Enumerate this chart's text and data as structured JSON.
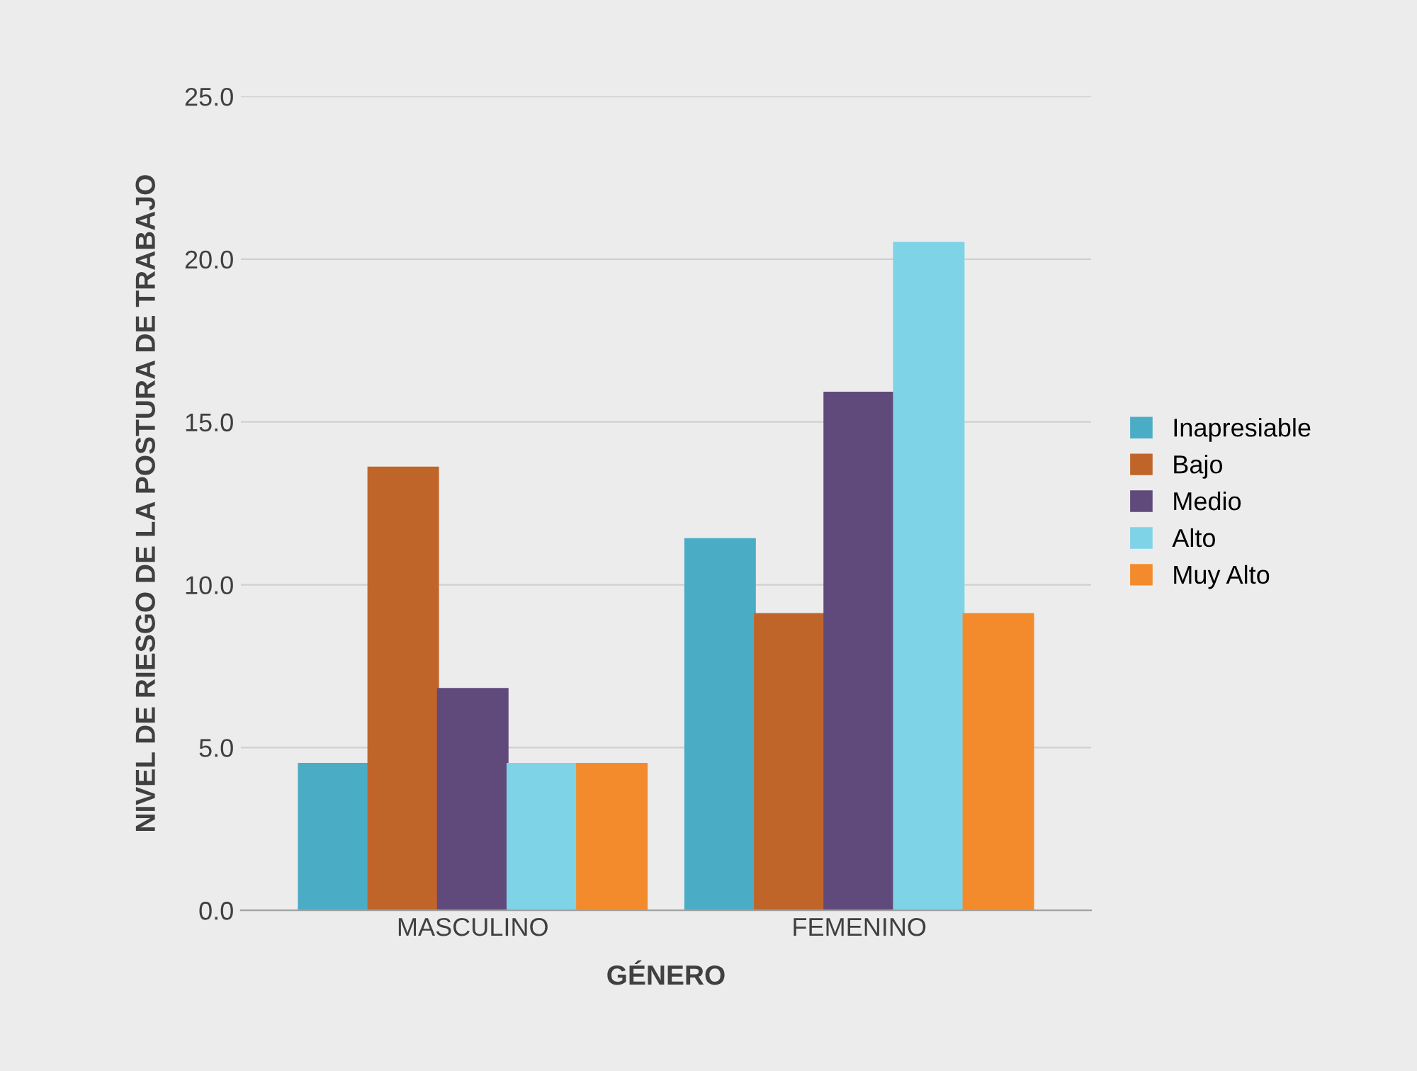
{
  "chart_data": {
    "type": "bar",
    "xlabel": "GÉNERO",
    "ylabel": "NIVEL DE RIESGO DE LA POSTURA DE TRABAJO",
    "categories": [
      "MASCULINO",
      "FEMENINO"
    ],
    "series": [
      {
        "name": "Inapresiable",
        "color": "#4bacc6",
        "values": [
          4.5,
          11.4
        ]
      },
      {
        "name": "Bajo",
        "color": "#c0652a",
        "values": [
          13.6,
          9.1
        ]
      },
      {
        "name": "Medio",
        "color": "#604a7b",
        "values": [
          6.8,
          15.9
        ]
      },
      {
        "name": "Alto",
        "color": "#7fd3e6",
        "values": [
          4.5,
          20.5
        ]
      },
      {
        "name": "Muy Alto",
        "color": "#f38b2c",
        "values": [
          4.5,
          9.1
        ]
      }
    ],
    "ylim": [
      0,
      25
    ],
    "yticks": [
      {
        "value": 0,
        "label": "0.0"
      },
      {
        "value": 5,
        "label": "5.0"
      },
      {
        "value": 10,
        "label": "10.0"
      },
      {
        "value": 15,
        "label": "15.0"
      },
      {
        "value": 20,
        "label": "20.0"
      },
      {
        "value": 25,
        "label": "25.0"
      }
    ],
    "grid": "y",
    "legend": "right"
  }
}
